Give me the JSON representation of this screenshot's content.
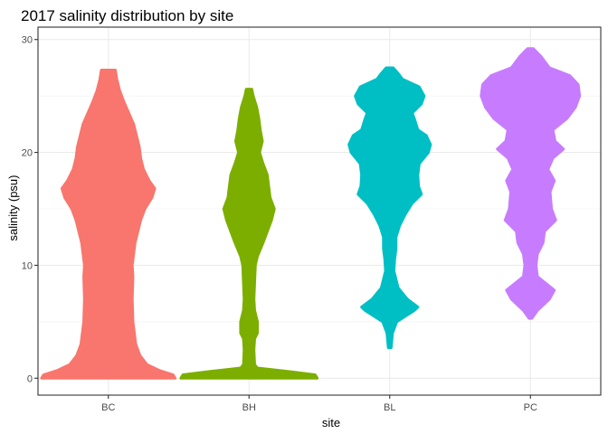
{
  "chart_data": {
    "type": "violin",
    "title": "2017 salinity distribution by site",
    "xlabel": "site",
    "ylabel": "salinity (psu)",
    "categories": [
      "BC",
      "BH",
      "BL",
      "PC"
    ],
    "ylim": [
      -1.5,
      31.1
    ],
    "yticks": [
      0,
      10,
      20,
      30
    ],
    "grid": true,
    "legend": "none",
    "series": [
      {
        "category": "BC",
        "color": "#F8766D",
        "profile": [
          [
            0.0,
            0.95
          ],
          [
            0.3,
            0.92
          ],
          [
            0.7,
            0.72
          ],
          [
            1.2,
            0.55
          ],
          [
            2.0,
            0.45
          ],
          [
            3.0,
            0.39
          ],
          [
            5.0,
            0.35
          ],
          [
            7.0,
            0.34
          ],
          [
            9.0,
            0.35
          ],
          [
            10.0,
            0.34
          ],
          [
            11.0,
            0.36
          ],
          [
            12.0,
            0.38
          ],
          [
            13.0,
            0.42
          ],
          [
            14.0,
            0.46
          ],
          [
            15.0,
            0.52
          ],
          [
            16.0,
            0.62
          ],
          [
            16.8,
            0.66
          ],
          [
            17.5,
            0.58
          ],
          [
            18.5,
            0.5
          ],
          [
            19.5,
            0.46
          ],
          [
            20.5,
            0.44
          ],
          [
            21.5,
            0.4
          ],
          [
            22.5,
            0.36
          ],
          [
            23.5,
            0.29
          ],
          [
            24.5,
            0.22
          ],
          [
            25.5,
            0.16
          ],
          [
            26.5,
            0.12
          ],
          [
            27.3,
            0.1
          ]
        ]
      },
      {
        "category": "BH",
        "color": "#7CAE00",
        "profile": [
          [
            0.0,
            0.97
          ],
          [
            0.3,
            0.94
          ],
          [
            0.6,
            0.55
          ],
          [
            0.9,
            0.12
          ],
          [
            1.2,
            0.08
          ],
          [
            2.5,
            0.07
          ],
          [
            3.5,
            0.08
          ],
          [
            4.0,
            0.12
          ],
          [
            5.0,
            0.12
          ],
          [
            6.0,
            0.08
          ],
          [
            7.0,
            0.07
          ],
          [
            8.5,
            0.08
          ],
          [
            10.0,
            0.09
          ],
          [
            10.8,
            0.12
          ],
          [
            12.0,
            0.2
          ],
          [
            13.0,
            0.26
          ],
          [
            14.0,
            0.32
          ],
          [
            15.0,
            0.36
          ],
          [
            16.0,
            0.3
          ],
          [
            17.0,
            0.28
          ],
          [
            18.0,
            0.26
          ],
          [
            19.0,
            0.2
          ],
          [
            20.0,
            0.15
          ],
          [
            21.0,
            0.19
          ],
          [
            22.0,
            0.16
          ],
          [
            23.0,
            0.14
          ],
          [
            24.0,
            0.11
          ],
          [
            25.0,
            0.06
          ],
          [
            25.6,
            0.04
          ]
        ]
      },
      {
        "category": "BL",
        "color": "#00BFC4",
        "profile": [
          [
            2.7,
            0.02
          ],
          [
            4.0,
            0.04
          ],
          [
            5.0,
            0.1
          ],
          [
            6.0,
            0.35
          ],
          [
            6.3,
            0.4
          ],
          [
            7.0,
            0.25
          ],
          [
            8.0,
            0.12
          ],
          [
            9.0,
            0.08
          ],
          [
            9.5,
            0.06
          ],
          [
            10.5,
            0.07
          ],
          [
            11.5,
            0.09
          ],
          [
            12.5,
            0.09
          ],
          [
            13.5,
            0.14
          ],
          [
            14.5,
            0.22
          ],
          [
            15.5,
            0.32
          ],
          [
            16.3,
            0.45
          ],
          [
            17.0,
            0.41
          ],
          [
            18.0,
            0.4
          ],
          [
            19.0,
            0.42
          ],
          [
            20.0,
            0.55
          ],
          [
            20.7,
            0.58
          ],
          [
            21.5,
            0.52
          ],
          [
            22.0,
            0.4
          ],
          [
            23.0,
            0.35
          ],
          [
            23.5,
            0.32
          ],
          [
            24.3,
            0.45
          ],
          [
            25.0,
            0.49
          ],
          [
            25.8,
            0.42
          ],
          [
            26.5,
            0.18
          ],
          [
            27.0,
            0.12
          ],
          [
            27.5,
            0.05
          ]
        ]
      },
      {
        "category": "PC",
        "color": "#C77CFF",
        "profile": [
          [
            5.3,
            0.02
          ],
          [
            6.0,
            0.1
          ],
          [
            7.0,
            0.27
          ],
          [
            7.8,
            0.34
          ],
          [
            8.5,
            0.2
          ],
          [
            9.0,
            0.1
          ],
          [
            10.0,
            0.08
          ],
          [
            11.0,
            0.1
          ],
          [
            12.0,
            0.18
          ],
          [
            13.0,
            0.2
          ],
          [
            14.0,
            0.36
          ],
          [
            15.0,
            0.3
          ],
          [
            16.5,
            0.28
          ],
          [
            17.5,
            0.34
          ],
          [
            18.5,
            0.25
          ],
          [
            19.5,
            0.32
          ],
          [
            20.3,
            0.47
          ],
          [
            21.0,
            0.35
          ],
          [
            22.0,
            0.32
          ],
          [
            23.0,
            0.52
          ],
          [
            24.0,
            0.64
          ],
          [
            25.0,
            0.7
          ],
          [
            26.0,
            0.68
          ],
          [
            26.8,
            0.56
          ],
          [
            27.5,
            0.27
          ],
          [
            28.5,
            0.15
          ],
          [
            29.2,
            0.04
          ]
        ]
      }
    ]
  }
}
